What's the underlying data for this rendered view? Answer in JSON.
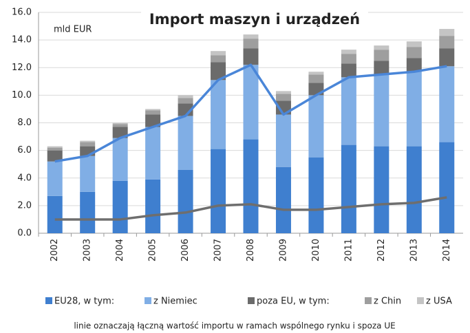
{
  "chart_data": {
    "type": "bar",
    "stacked": true,
    "title": "Import maszyn i urządzeń",
    "unit_label": "mld EUR",
    "note": "linie oznaczają łączną wartość importu w ramach wspólnego rynku i spoza UE",
    "categories": [
      "2002",
      "2003",
      "2004",
      "2005",
      "2006",
      "2007",
      "2008",
      "2009",
      "2010",
      "2011",
      "2012",
      "2013",
      "2014"
    ],
    "series": [
      {
        "name": "EU28, w tym:",
        "color": "#3f7fcf",
        "values": [
          2.7,
          3.0,
          3.8,
          3.9,
          4.6,
          6.1,
          6.8,
          4.8,
          5.5,
          6.4,
          6.3,
          6.3,
          6.6
        ]
      },
      {
        "name": "z Niemiec",
        "color": "#80aee5",
        "values": [
          2.5,
          2.6,
          3.1,
          3.8,
          3.9,
          5.0,
          5.4,
          3.8,
          4.5,
          4.9,
          5.2,
          5.4,
          5.5
        ]
      },
      {
        "name": "poza EU, w tym:",
        "color": "#6b6b6b",
        "values": [
          0.8,
          0.7,
          0.8,
          0.9,
          0.9,
          1.3,
          1.2,
          1.0,
          0.9,
          1.0,
          1.0,
          1.0,
          1.3
        ]
      },
      {
        "name": "z Chin",
        "color": "#9e9e9e",
        "values": [
          0.2,
          0.3,
          0.2,
          0.3,
          0.4,
          0.5,
          0.7,
          0.5,
          0.6,
          0.7,
          0.8,
          0.8,
          0.9
        ]
      },
      {
        "name": "z USA",
        "color": "#c4c4c4",
        "values": [
          0.1,
          0.1,
          0.1,
          0.1,
          0.2,
          0.3,
          0.3,
          0.2,
          0.2,
          0.3,
          0.3,
          0.4,
          0.5
        ]
      }
    ],
    "lines": [
      {
        "color": "#4a86d8",
        "values": [
          5.2,
          5.6,
          6.9,
          7.7,
          8.5,
          11.1,
          12.2,
          8.6,
          10.0,
          11.3,
          11.5,
          11.7,
          12.1
        ]
      },
      {
        "color": "#6e6e6e",
        "values": [
          1.0,
          1.0,
          1.0,
          1.3,
          1.5,
          2.0,
          2.1,
          1.7,
          1.7,
          1.9,
          2.1,
          2.2,
          2.6
        ]
      }
    ],
    "ylim": [
      0,
      16
    ],
    "yticks": [
      {
        "value": 0,
        "label": "0.0"
      },
      {
        "value": 2,
        "label": "2.0"
      },
      {
        "value": 4,
        "label": "4.0"
      },
      {
        "value": 6,
        "label": "6.0"
      },
      {
        "value": 8,
        "label": "8.0"
      },
      {
        "value": 10,
        "label": "10.0"
      },
      {
        "value": 12,
        "label": "12.0"
      },
      {
        "value": 14,
        "label": "14.0"
      },
      {
        "value": 16,
        "label": "16.0"
      }
    ],
    "grid": true,
    "legend": "bottom"
  }
}
